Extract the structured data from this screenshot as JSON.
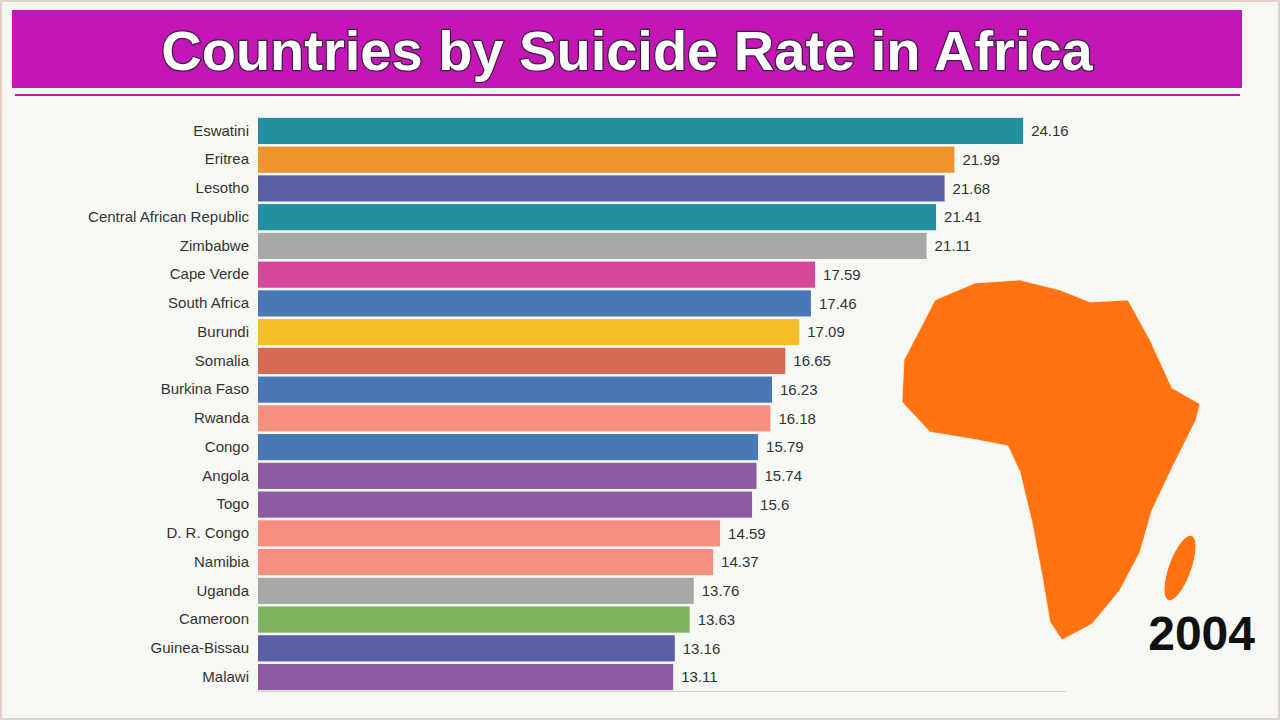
{
  "chart_data": {
    "type": "bar",
    "orientation": "horizontal",
    "title": "Countries by Suicide Rate in Africa",
    "annotations": [
      "2004"
    ],
    "categories": [
      "Eswatini",
      "Eritrea",
      "Lesotho",
      "Central African Republic",
      "Zimbabwe",
      "Cape Verde",
      "South Africa",
      "Burundi",
      "Somalia",
      "Burkina Faso",
      "Rwanda",
      "Congo",
      "Angola",
      "Togo",
      "D. R. Congo",
      "Namibia",
      "Uganda",
      "Cameroon",
      "Guinea-Bissau",
      "Malawi"
    ],
    "values": [
      24.16,
      21.99,
      21.68,
      21.41,
      21.11,
      17.59,
      17.46,
      17.09,
      16.65,
      16.23,
      16.18,
      15.79,
      15.74,
      15.6,
      14.59,
      14.37,
      13.76,
      13.63,
      13.16,
      13.11
    ],
    "colors": [
      "#23909f",
      "#f0952b",
      "#5b5fa6",
      "#23909f",
      "#a8a8a6",
      "#d9479a",
      "#4a78b6",
      "#f6bd27",
      "#d76a52",
      "#4a78b6",
      "#f78f80",
      "#4a78b6",
      "#8d5ba2",
      "#8d5ba2",
      "#f78f80",
      "#f78f80",
      "#a8a8a6",
      "#80b35f",
      "#5b5fa6",
      "#8d5ba2"
    ],
    "xlim": [
      0,
      25.5
    ],
    "xticks": [],
    "tick_labels": "y",
    "grid": false,
    "data_labels": true
  }
}
